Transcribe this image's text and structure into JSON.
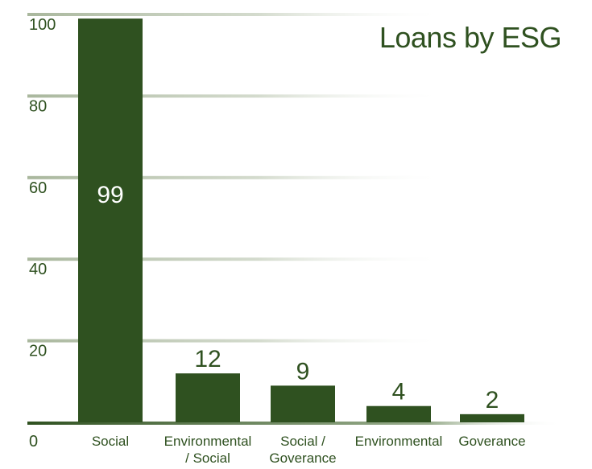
{
  "chart_data": {
    "type": "bar",
    "title": "Loans by ESG",
    "categories": [
      [
        "Social"
      ],
      [
        "Environmental",
        "/ Social"
      ],
      [
        "Social /",
        "Goverance"
      ],
      [
        "Environmental"
      ],
      [
        "Goverance"
      ]
    ],
    "values": [
      99,
      12,
      9,
      4,
      2
    ],
    "data_labels": [
      "99",
      "12",
      "9",
      "4",
      "2"
    ],
    "yticks": [
      "0",
      "20",
      "40",
      "60",
      "80",
      "100"
    ],
    "ylim": [
      0,
      100
    ],
    "grid": true,
    "colors": {
      "bar": "#2f5120",
      "grid": "#c5cfbd",
      "text": "#2f5120",
      "bar_label_inside": "#ffffff"
    }
  }
}
